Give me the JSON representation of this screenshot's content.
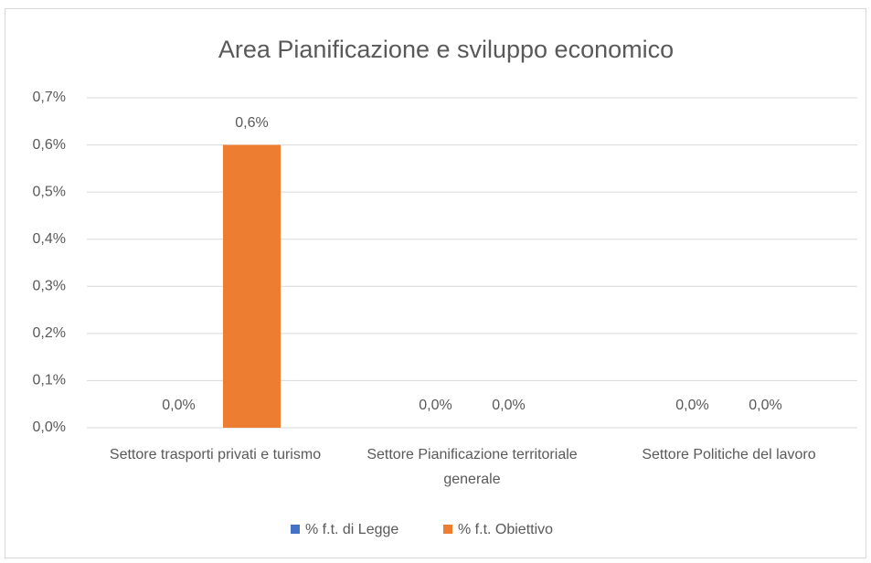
{
  "chart_data": {
    "type": "bar",
    "title": "Area Pianificazione e sviluppo economico",
    "categories": [
      "Settore trasporti privati e turismo",
      "Settore Pianificazione territoriale generale",
      "Settore Politiche del lavoro"
    ],
    "series": [
      {
        "name": "% f.t. di Legge",
        "color": "#4472c4",
        "values": [
          0,
          0,
          0
        ],
        "value_labels": [
          "0,0%",
          "0,0%",
          "0,0%"
        ]
      },
      {
        "name": "% f.t. Obiettivo",
        "color": "#ed7d31",
        "values": [
          0.6,
          0,
          0
        ],
        "value_labels": [
          "0,6%",
          "0,0%",
          "0,0%"
        ]
      }
    ],
    "ylim": [
      0,
      0.7
    ],
    "yticks": [
      {
        "value": 0,
        "label": "0,0%"
      },
      {
        "value": 0.1,
        "label": "0,1%"
      },
      {
        "value": 0.2,
        "label": "0,2%"
      },
      {
        "value": 0.3,
        "label": "0,3%"
      },
      {
        "value": 0.4,
        "label": "0,4%"
      },
      {
        "value": 0.5,
        "label": "0,5%"
      },
      {
        "value": 0.6,
        "label": "0,6%"
      },
      {
        "value": 0.7,
        "label": "0,7%"
      }
    ],
    "grid": true,
    "legend": "bottom"
  }
}
